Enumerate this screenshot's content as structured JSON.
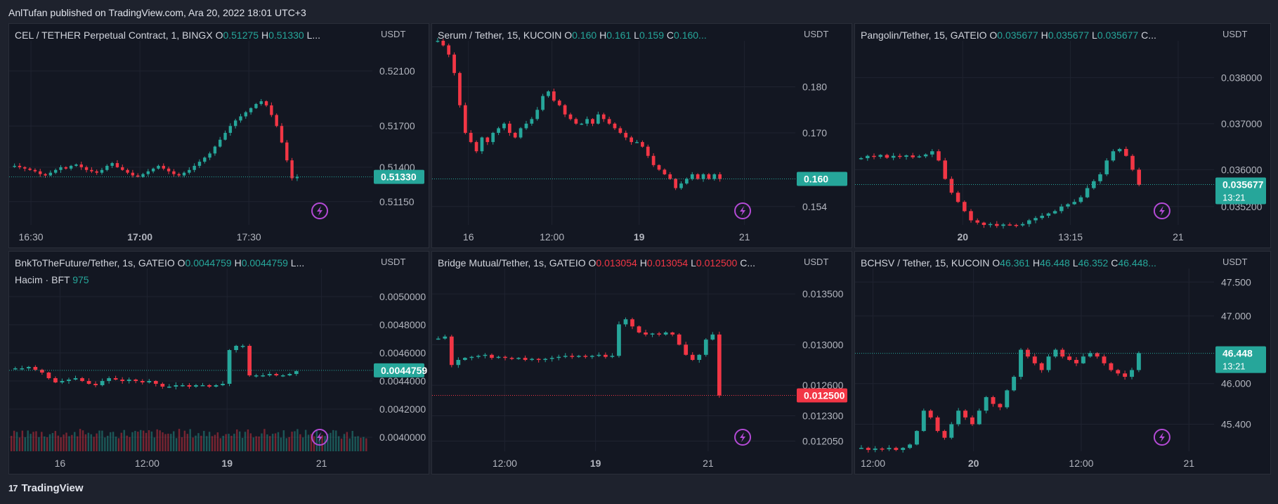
{
  "header": {
    "text": "AnlTufan published on TradingView.com, Ara 20, 2022 18:01 UTC+3"
  },
  "footer": {
    "logo_text": "TradingView"
  },
  "colors": {
    "up": "#26a69a",
    "down": "#f23645",
    "bolt": "#b44ad6",
    "bg": "#131722",
    "grid": "#1f2330"
  },
  "chart_data": [
    {
      "type": "candlestick",
      "legend": {
        "title": "CEL / TETHER Perpetual Contract, 1, BINGX",
        "o": "0.51275",
        "h": "0.51330",
        "l": "L..."
      },
      "currency": "USDT",
      "y_ticks": [
        "0.52100",
        "0.51700",
        "0.51400",
        "0.51150"
      ],
      "y_tick_values": [
        0.521,
        0.517,
        0.514,
        0.5115
      ],
      "ylim": [
        0.5098,
        0.5232
      ],
      "x_ticks": [
        {
          "label": "16:30",
          "at": 0.06,
          "bold": false
        },
        {
          "label": "17:00",
          "at": 0.36,
          "bold": true
        },
        {
          "label": "17:30",
          "at": 0.66,
          "bold": false
        }
      ],
      "last_price": {
        "label": "0.51330",
        "value": 0.5133,
        "color": "up"
      },
      "series": [
        0.5141,
        0.514,
        0.5139,
        0.5138,
        0.5137,
        0.5135,
        0.5134,
        0.5136,
        0.5138,
        0.514,
        0.5139,
        0.5141,
        0.5142,
        0.514,
        0.5138,
        0.5137,
        0.5136,
        0.5138,
        0.5141,
        0.5143,
        0.514,
        0.5138,
        0.5136,
        0.5134,
        0.5133,
        0.5135,
        0.5137,
        0.5139,
        0.5141,
        0.5139,
        0.5137,
        0.5135,
        0.5134,
        0.5136,
        0.5138,
        0.5141,
        0.5144,
        0.5147,
        0.515,
        0.5155,
        0.516,
        0.5165,
        0.517,
        0.5174,
        0.5177,
        0.518,
        0.5183,
        0.5186,
        0.5188,
        0.5185,
        0.5178,
        0.517,
        0.5158,
        0.5145,
        0.5132,
        0.5133
      ]
    },
    {
      "type": "candlestick",
      "legend": {
        "title": "Serum / Tether, 15, KUCOIN",
        "o": "0.160",
        "h": "0.161",
        "l": "0.159",
        "c": "0.160..."
      },
      "currency": "USDT",
      "y_ticks": [
        "0.180",
        "0.170",
        "0.154"
      ],
      "y_tick_values": [
        0.18,
        0.17,
        0.154
      ],
      "ylim": [
        0.15,
        0.19
      ],
      "x_ticks": [
        {
          "label": "16",
          "at": 0.1,
          "bold": false
        },
        {
          "label": "12:00",
          "at": 0.33,
          "bold": false
        },
        {
          "label": "19",
          "at": 0.57,
          "bold": true
        },
        {
          "label": "21",
          "at": 0.86,
          "bold": false
        }
      ],
      "last_price": {
        "label": "0.160",
        "value": 0.16,
        "color": "up"
      },
      "series": [
        0.19,
        0.189,
        0.187,
        0.183,
        0.176,
        0.17,
        0.168,
        0.166,
        0.169,
        0.168,
        0.17,
        0.171,
        0.172,
        0.17,
        0.169,
        0.171,
        0.172,
        0.173,
        0.175,
        0.178,
        0.179,
        0.177,
        0.176,
        0.174,
        0.173,
        0.172,
        0.172,
        0.173,
        0.172,
        0.174,
        0.173,
        0.172,
        0.171,
        0.17,
        0.169,
        0.168,
        0.168,
        0.167,
        0.165,
        0.163,
        0.162,
        0.161,
        0.16,
        0.158,
        0.159,
        0.16,
        0.161,
        0.16,
        0.161,
        0.16,
        0.161,
        0.16
      ]
    },
    {
      "type": "candlestick",
      "legend": {
        "title": "Pangolin/Tether, 15, GATEIO",
        "o": "0.035677",
        "h": "0.035677",
        "l": "0.035677",
        "c": "C..."
      },
      "currency": "USDT",
      "y_ticks": [
        "0.038000",
        "0.037000",
        "0.036000",
        "0.035200"
      ],
      "y_tick_values": [
        0.038,
        0.037,
        0.036,
        0.0352
      ],
      "ylim": [
        0.0348,
        0.0388
      ],
      "x_ticks": [
        {
          "label": "20",
          "at": 0.3,
          "bold": true
        },
        {
          "label": "13:15",
          "at": 0.6,
          "bold": false
        },
        {
          "label": "21",
          "at": 0.9,
          "bold": false
        }
      ],
      "last_price": {
        "label": "0.035677",
        "sub": "13:21",
        "value": 0.035677,
        "color": "up"
      },
      "series": [
        0.03625,
        0.0363,
        0.03628,
        0.03632,
        0.03626,
        0.0363,
        0.03628,
        0.03631,
        0.03627,
        0.03629,
        0.03633,
        0.0364,
        0.0362,
        0.0358,
        0.0355,
        0.0353,
        0.0351,
        0.0349,
        0.03485,
        0.0348,
        0.03482,
        0.03478,
        0.03481,
        0.0348,
        0.03479,
        0.03482,
        0.0349,
        0.03495,
        0.035,
        0.03505,
        0.0351,
        0.0352,
        0.03525,
        0.0353,
        0.0354,
        0.0356,
        0.03575,
        0.0359,
        0.0362,
        0.0364,
        0.03645,
        0.0363,
        0.036,
        0.03567
      ]
    },
    {
      "type": "candlestick",
      "legend": {
        "title": "BnkToTheFuture/Tether, 1s, GATEIO",
        "o": "0.0044759",
        "h": "0.0044759",
        "l": "L..."
      },
      "volume_legend": {
        "label": "Hacim · BFT",
        "value": "975"
      },
      "currency": "USDT",
      "y_ticks": [
        "0.0050000",
        "0.0048000",
        "0.0046000",
        "0.0044000",
        "0.0042000",
        "0.0040000"
      ],
      "y_tick_values": [
        0.005,
        0.0048,
        0.0046,
        0.0044,
        0.0042,
        0.004
      ],
      "ylim": [
        0.0039,
        0.0052
      ],
      "x_ticks": [
        {
          "label": "16",
          "at": 0.14,
          "bold": false
        },
        {
          "label": "12:00",
          "at": 0.38,
          "bold": false
        },
        {
          "label": "19",
          "at": 0.6,
          "bold": true
        },
        {
          "label": "21",
          "at": 0.86,
          "bold": false
        }
      ],
      "last_price": {
        "label": "0.0044759",
        "value": 0.0044759,
        "color": "up"
      },
      "series": [
        0.00449,
        0.00449,
        0.0045,
        0.00448,
        0.00446,
        0.00442,
        0.00439,
        0.0044,
        0.00441,
        0.00442,
        0.0044,
        0.00438,
        0.00437,
        0.0044,
        0.00442,
        0.00441,
        0.0044,
        0.00441,
        0.0044,
        0.00439,
        0.0044,
        0.00438,
        0.00436,
        0.00436,
        0.00437,
        0.00437,
        0.00436,
        0.00437,
        0.00437,
        0.00436,
        0.00437,
        0.00438,
        0.00462,
        0.00465,
        0.00465,
        0.00444,
        0.00444,
        0.00444,
        0.00445,
        0.00444,
        0.00444,
        0.00445,
        0.00447
      ]
    },
    {
      "type": "candlestick",
      "legend": {
        "title": "Bridge Mutual/Tether, 1s, GATEIO",
        "o": "0.013054",
        "h": "0.013054",
        "l": "0.012500",
        "c": "C..."
      },
      "currency": "USDT",
      "y_ticks": [
        "0.013500",
        "0.013000",
        "0.012600",
        "0.012300",
        "0.012050"
      ],
      "y_tick_values": [
        0.0135,
        0.013,
        0.0126,
        0.0123,
        0.01205
      ],
      "ylim": [
        0.01195,
        0.01375
      ],
      "x_ticks": [
        {
          "label": "12:00",
          "at": 0.2,
          "bold": false
        },
        {
          "label": "19",
          "at": 0.45,
          "bold": true
        },
        {
          "label": "21",
          "at": 0.76,
          "bold": false
        }
      ],
      "last_price": {
        "label": "0.012500",
        "value": 0.0125,
        "color": "down"
      },
      "series": [
        0.01306,
        0.01308,
        0.0128,
        0.01285,
        0.01287,
        0.01288,
        0.01289,
        0.0129,
        0.01287,
        0.01288,
        0.01287,
        0.01286,
        0.01287,
        0.01285,
        0.01286,
        0.01285,
        0.01286,
        0.01287,
        0.01288,
        0.01289,
        0.01288,
        0.01289,
        0.01288,
        0.01289,
        0.0129,
        0.01288,
        0.01289,
        0.0132,
        0.01325,
        0.01318,
        0.01312,
        0.0131,
        0.01311,
        0.0131,
        0.01312,
        0.0131,
        0.013,
        0.0129,
        0.01285,
        0.0129,
        0.01305,
        0.0131,
        0.0125
      ]
    },
    {
      "type": "candlestick",
      "legend": {
        "title": "BCHSV / Tether, 15, KUCOIN",
        "o": "46.361",
        "h": "46.448",
        "l": "46.352",
        "c": "46.448..."
      },
      "currency": "USDT",
      "y_ticks": [
        "47.500",
        "47.000",
        "46.000",
        "45.400"
      ],
      "y_tick_values": [
        47.5,
        47.0,
        46.0,
        45.4
      ],
      "ylim": [
        45.0,
        47.7
      ],
      "x_ticks": [
        {
          "label": "12:00",
          "at": 0.05,
          "bold": false
        },
        {
          "label": "20",
          "at": 0.33,
          "bold": true
        },
        {
          "label": "12:00",
          "at": 0.63,
          "bold": false
        },
        {
          "label": "21",
          "at": 0.93,
          "bold": false
        }
      ],
      "last_price": {
        "label": "46.448",
        "sub": "13:21",
        "value": 46.448,
        "color": "up"
      },
      "series": [
        45.05,
        45.02,
        45.04,
        45.03,
        45.05,
        45.02,
        45.05,
        45.1,
        45.3,
        45.6,
        45.5,
        45.3,
        45.2,
        45.4,
        45.6,
        45.5,
        45.4,
        45.6,
        45.8,
        45.7,
        45.65,
        45.9,
        46.1,
        46.5,
        46.4,
        46.3,
        46.2,
        46.4,
        46.5,
        46.4,
        46.35,
        46.3,
        46.4,
        46.45,
        46.4,
        46.3,
        46.2,
        46.15,
        46.1,
        46.2,
        46.45
      ]
    }
  ]
}
